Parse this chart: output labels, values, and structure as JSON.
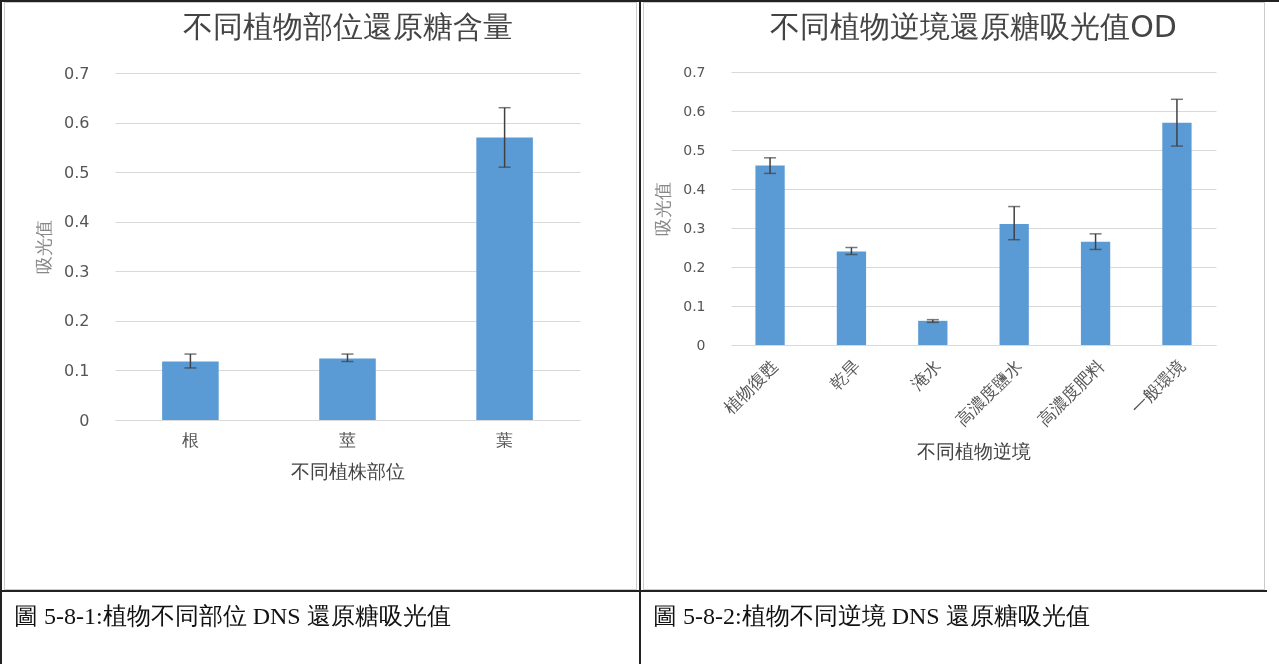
{
  "chart_data": [
    {
      "type": "bar",
      "title": "不同植物部位還原糖含量",
      "xlabel": "不同植株部位",
      "ylabel": "吸光值",
      "categories": [
        "根",
        "莖",
        "葉"
      ],
      "values": [
        0.118,
        0.124,
        0.57
      ],
      "errors": [
        [
          0.105,
          0.133
        ],
        [
          0.118,
          0.133
        ],
        [
          0.51,
          0.63
        ]
      ],
      "color": "#5b9bd5",
      "ylim": [
        0,
        0.7
      ],
      "yticks": [
        0,
        0.1,
        0.2,
        0.3,
        0.4,
        0.5,
        0.6,
        0.7
      ],
      "grid": "y",
      "annotations": [
        "圖 5-8-1:植物不同部位 DNS 還原糖吸光值"
      ]
    },
    {
      "type": "bar",
      "title": "不同植物逆境還原糖吸光值OD",
      "xlabel": "不同植物逆境",
      "ylabel": "吸光值",
      "categories": [
        "植物復甦",
        "乾旱",
        "淹水",
        "高濃度鹽水",
        "高濃度肥料",
        "一般環境"
      ],
      "values": [
        0.46,
        0.24,
        0.062,
        0.31,
        0.265,
        0.57
      ],
      "errors": [
        [
          0.44,
          0.48
        ],
        [
          0.232,
          0.25
        ],
        [
          0.058,
          0.065
        ],
        [
          0.27,
          0.355
        ],
        [
          0.245,
          0.285
        ],
        [
          0.51,
          0.63
        ]
      ],
      "color": "#5b9bd5",
      "ylim": [
        0,
        0.7
      ],
      "yticks": [
        0,
        0.1,
        0.2,
        0.3,
        0.4,
        0.5,
        0.6,
        0.7
      ],
      "grid": "y",
      "annotations": [
        "圖 5-8-2:植物不同逆境 DNS 還原糖吸光值"
      ]
    }
  ]
}
